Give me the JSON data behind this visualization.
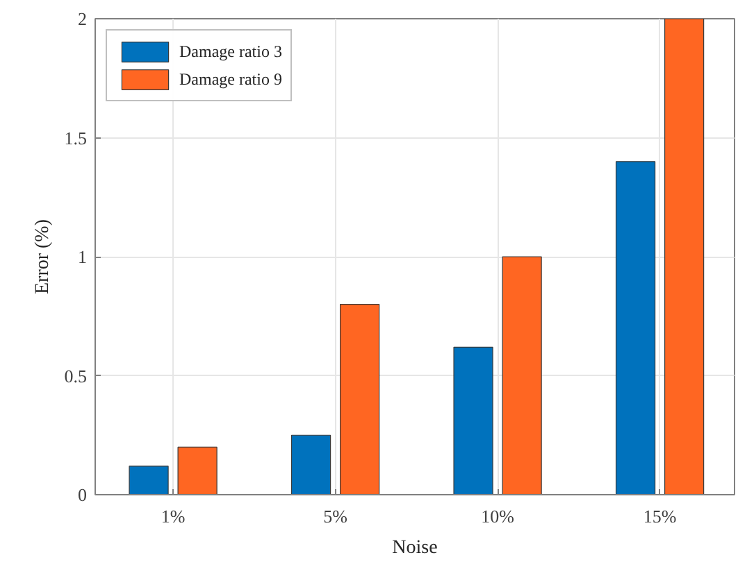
{
  "chart_data": {
    "type": "bar",
    "xlabel": "Noise",
    "ylabel": "Error (%)",
    "categories": [
      "1%",
      "5%",
      "10%",
      "15%"
    ],
    "series": [
      {
        "name": "Damage ratio 3",
        "color": "#0072bd",
        "values": [
          0.12,
          0.25,
          0.62,
          1.4
        ]
      },
      {
        "name": "Damage ratio 9",
        "color": "#ff6622",
        "values": [
          0.2,
          0.8,
          1.0,
          2.0
        ]
      }
    ],
    "ylim": [
      0,
      2
    ],
    "yticks": [
      0,
      0.5,
      1,
      1.5,
      2
    ],
    "grid": true,
    "legend": "top left"
  }
}
